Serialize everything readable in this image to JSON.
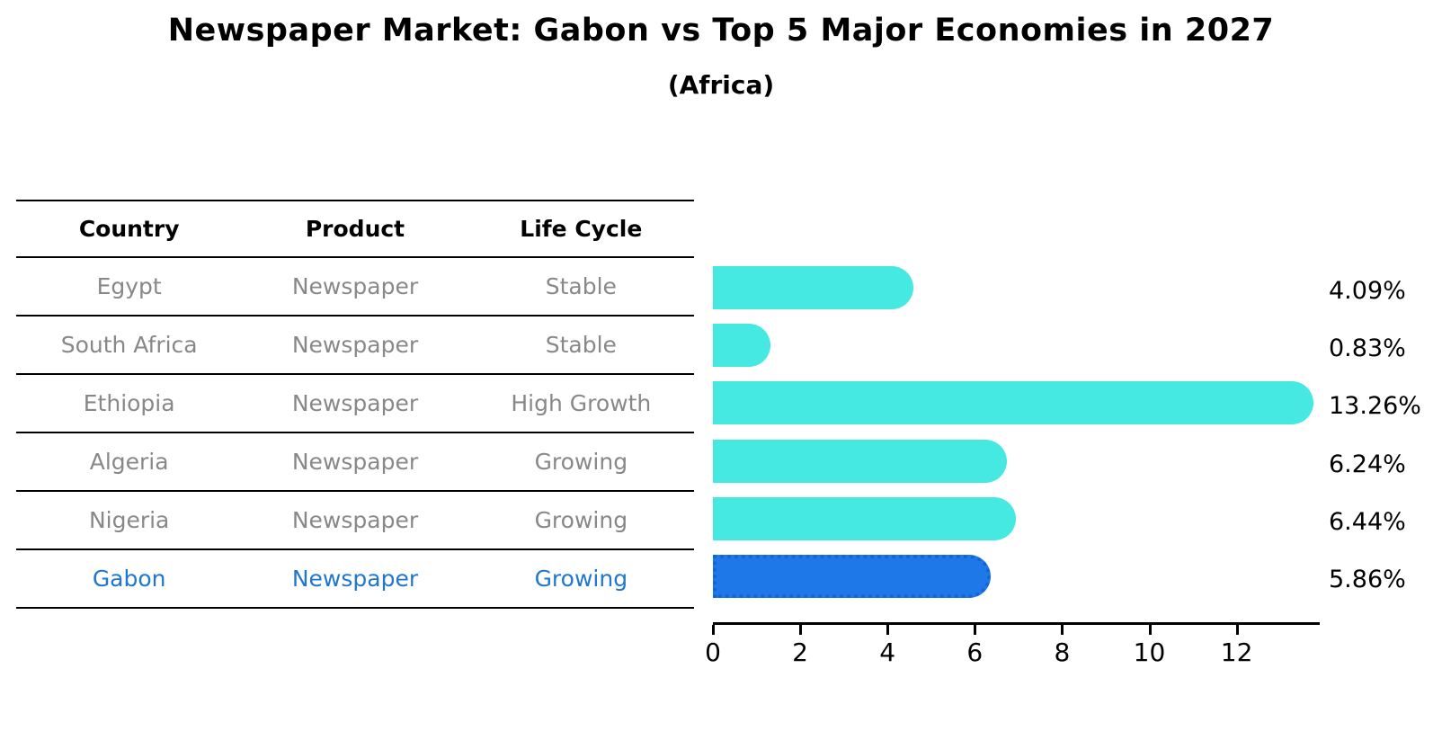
{
  "title": "Newspaper Market: Gabon vs Top 5 Major Economies in 2027",
  "subtitle": "(Africa)",
  "table": {
    "headers": [
      "Country",
      "Product",
      "Life Cycle"
    ],
    "rows": [
      {
        "country": "Egypt",
        "product": "Newspaper",
        "life_cycle": "Stable",
        "highlight": false
      },
      {
        "country": "South Africa",
        "product": "Newspaper",
        "life_cycle": "Stable",
        "highlight": false
      },
      {
        "country": "Ethiopia",
        "product": "Newspaper",
        "life_cycle": "High Growth",
        "highlight": false
      },
      {
        "country": "Algeria",
        "product": "Newspaper",
        "life_cycle": "Growing",
        "highlight": false
      },
      {
        "country": "Nigeria",
        "product": "Newspaper",
        "life_cycle": "Growing",
        "highlight": false
      },
      {
        "country": "Gabon",
        "product": "Newspaper",
        "life_cycle": "Growing",
        "highlight": true
      }
    ]
  },
  "chart_data": {
    "type": "bar",
    "orientation": "horizontal",
    "title": "Newspaper Market: Gabon vs Top 5 Major Economies in 2027",
    "subtitle": "(Africa)",
    "categories": [
      "Egypt",
      "South Africa",
      "Ethiopia",
      "Algeria",
      "Nigeria",
      "Gabon"
    ],
    "values": [
      4.09,
      0.83,
      13.26,
      6.24,
      6.44,
      5.86
    ],
    "value_labels": [
      "4.09%",
      "0.83%",
      "13.26%",
      "6.24%",
      "6.44%",
      "5.86%"
    ],
    "highlight_index": 5,
    "highlight_category": "Gabon",
    "xlabel": "",
    "ylabel": "",
    "xlim": [
      0,
      13.9
    ],
    "xticks": [
      0,
      2,
      4,
      6,
      8,
      10,
      12
    ],
    "grid": false,
    "legend": false
  },
  "colors": {
    "bar": "#46e8e2",
    "highlight_bar": "#1e78e8",
    "highlight_border": "#1563d8",
    "row_text": "#888888",
    "highlight_text": "#2077ce",
    "axis": "#000000"
  }
}
